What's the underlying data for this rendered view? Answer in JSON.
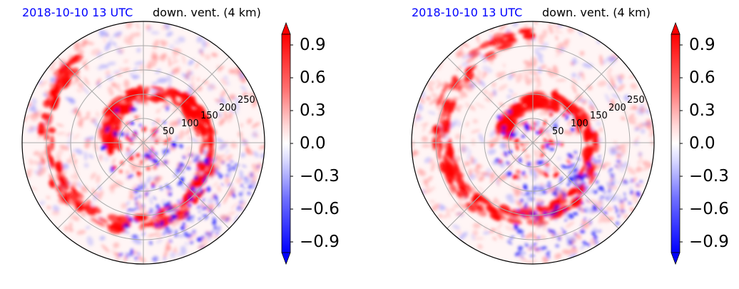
{
  "panels": [
    {
      "title_left": "2018-10-10 13 UTC",
      "title_right": "down. vent. (4 km)",
      "radial_labels": [
        "50",
        "100",
        "150",
        "200",
        "250"
      ],
      "colorbar_ticks": [
        "0.9",
        "0.6",
        "0.3",
        "0.0",
        "−0.3",
        "−0.6",
        "−0.9"
      ]
    },
    {
      "title_left": "2018-10-10 13 UTC",
      "title_right": "down. vent. (4 km)",
      "radial_labels": [
        "50",
        "100",
        "150",
        "200",
        "250"
      ],
      "colorbar_ticks": [
        "0.9",
        "0.6",
        "0.3",
        "0.0",
        "−0.3",
        "−0.6",
        "−0.9"
      ]
    }
  ],
  "chart_data": [
    {
      "type": "heatmap",
      "projection": "polar",
      "title": "2018-10-10 13 UTC   down. vent. (4 km)",
      "radial_ticks": [
        50,
        100,
        150,
        200,
        250
      ],
      "color_range": [
        -1.0,
        1.0
      ],
      "colormap": "bwr",
      "colorbar_ticks": [
        0.9,
        0.6,
        0.3,
        0.0,
        -0.3,
        -0.6,
        -0.9
      ],
      "grid": true,
      "colors": {
        "positive": "#ff0000",
        "negative": "#0000ff",
        "neutral": "#ffffff"
      }
    },
    {
      "type": "heatmap",
      "projection": "polar",
      "title": "2018-10-10 13 UTC   down. vent. (4 km)",
      "radial_ticks": [
        50,
        100,
        150,
        200,
        250
      ],
      "color_range": [
        -1.0,
        1.0
      ],
      "colormap": "bwr",
      "colorbar_ticks": [
        0.9,
        0.6,
        0.3,
        0.0,
        -0.3,
        -0.6,
        -0.9
      ],
      "grid": true,
      "colors": {
        "positive": "#ff0000",
        "negative": "#0000ff",
        "neutral": "#ffffff"
      }
    }
  ]
}
